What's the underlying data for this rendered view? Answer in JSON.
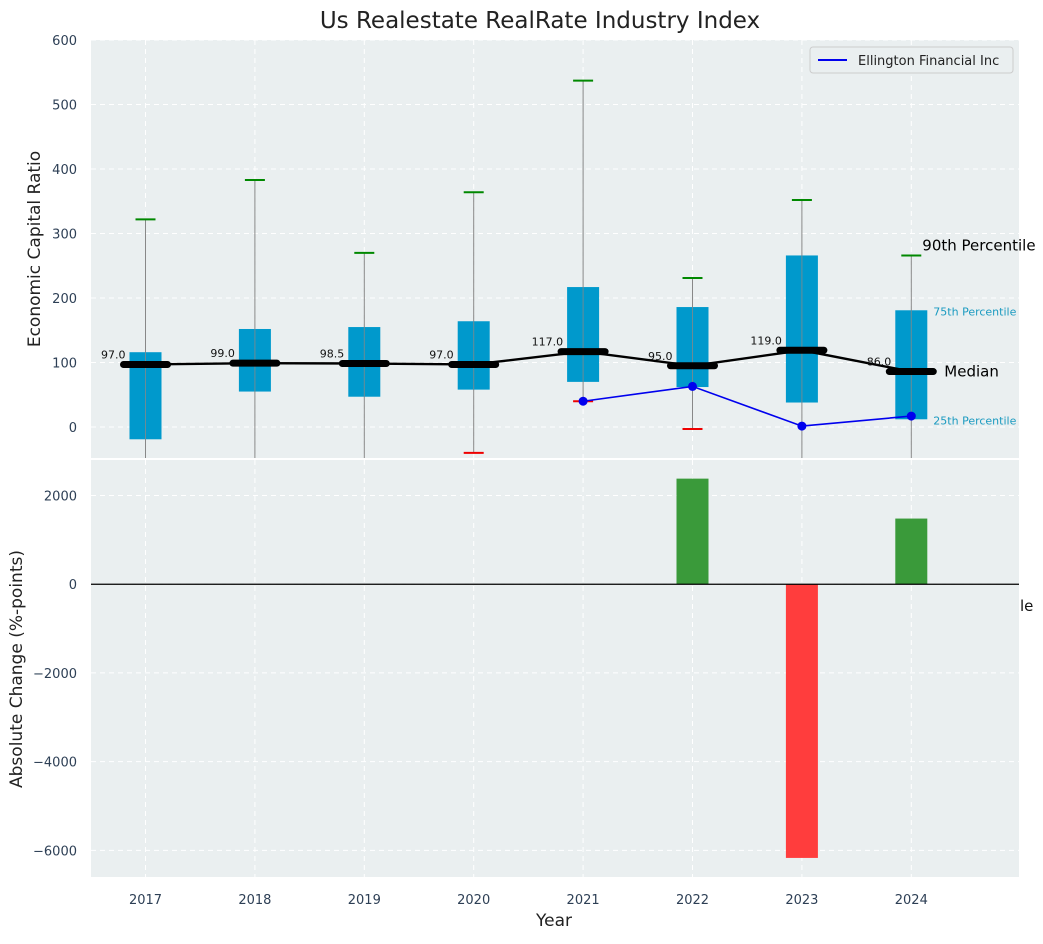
{
  "colors": {
    "panel_bg": "#eaeff0",
    "box_fill": "#0099cc",
    "whisker": "#888888",
    "p90_cap": "#008800",
    "p10_cap": "#ee0000",
    "median": "#000000",
    "company": "#0000ee",
    "pos_bar": "#3a9a3a",
    "neg_bar": "#ff3d3d",
    "tick_text": "#2d3f55",
    "pct_label": "#1a9ac0"
  },
  "chart_data": [
    {
      "type": "box",
      "title": "Us Realestate RealRate Industry Index",
      "ylabel": "Economic Capital Ratio",
      "ylim": [
        -48,
        600
      ],
      "yticks": [
        0,
        100,
        200,
        300,
        400,
        500,
        600
      ],
      "grid": true,
      "legend": {
        "placement": "top-right",
        "entries": [
          "Ellington Financial Inc"
        ]
      },
      "categories": [
        "2017",
        "2018",
        "2019",
        "2020",
        "2021",
        "2022",
        "2023",
        "2024"
      ],
      "p10": [
        -48,
        -48,
        -48,
        -40,
        40,
        -3,
        -48,
        -48
      ],
      "q1": [
        -19,
        55,
        47,
        58,
        70,
        62,
        38,
        12
      ],
      "median": [
        97.0,
        99.0,
        98.5,
        97.0,
        117.0,
        95.0,
        119.0,
        86.0
      ],
      "q3": [
        116,
        152,
        155,
        164,
        217,
        186,
        266,
        181
      ],
      "p90": [
        322,
        383,
        270,
        364,
        537,
        231,
        352,
        266
      ],
      "median_labels": [
        "97.0",
        "99.0",
        "98.5",
        "97.0",
        "117.0",
        "95.0",
        "119.0",
        "86.0"
      ],
      "series": [
        {
          "name": "Ellington Financial Inc",
          "x": [
            "2021",
            "2022",
            "2023",
            "2024"
          ],
          "values": [
            40,
            63,
            1.5,
            17
          ]
        }
      ],
      "annotations": [
        "90th Percentile",
        "75th Percentile",
        "Median",
        "25th Percentile"
      ]
    },
    {
      "type": "bar",
      "xlabel": "Year",
      "ylabel": "Absolute Change (%-points)",
      "ylim": [
        -6600,
        2800
      ],
      "yticks": [
        -6000,
        -4000,
        -2000,
        0,
        2000
      ],
      "grid": true,
      "categories": [
        "2017",
        "2018",
        "2019",
        "2020",
        "2021",
        "2022",
        "2023",
        "2024"
      ],
      "values": [
        null,
        null,
        null,
        null,
        null,
        2380,
        -6170,
        1480
      ],
      "stray_text": "le"
    }
  ]
}
